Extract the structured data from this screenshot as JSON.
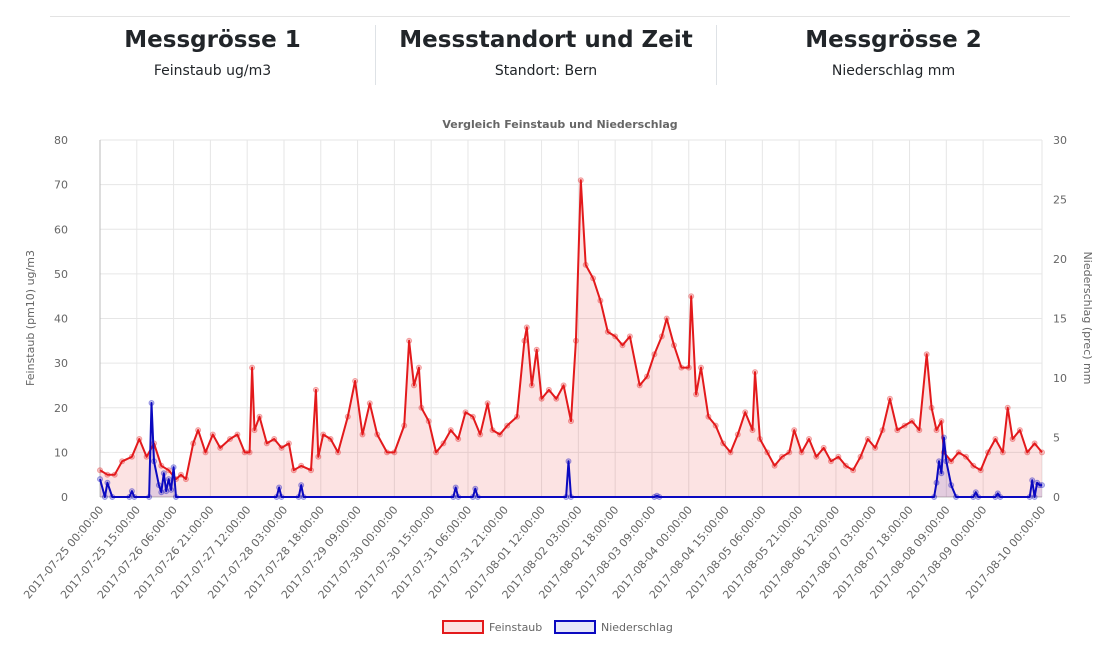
{
  "header": {
    "col1": {
      "title": "Messgrösse 1",
      "sub": "Feinstaub ug/m3"
    },
    "col2": {
      "title": "Messstandort und Zeit",
      "sub": "Standort: Bern"
    },
    "col3": {
      "title": "Messgrösse 2",
      "sub": "Niederschlag mm"
    }
  },
  "chart_data": {
    "type": "line",
    "title": "Vergleich Feinstaub und Niederschlag",
    "ylabel_left": "Feinstaub (pm10) ug/m3",
    "ylabel_right": "Niederschlag (prec) mm",
    "ylim_left": [
      0,
      80
    ],
    "ylim_right": [
      0,
      30
    ],
    "yticks_left": [
      "0",
      "10",
      "20",
      "30",
      "40",
      "50",
      "60",
      "70",
      "80"
    ],
    "yticks_right": [
      "0",
      "5",
      "10",
      "15",
      "20",
      "25",
      "30"
    ],
    "xlim": [
      "2017-07-25 00:00:00",
      "2017-08-10 00:00:00"
    ],
    "xticks": [
      "2017-07-25 00:00:00",
      "2017-07-25 15:00:00",
      "2017-07-26 06:00:00",
      "2017-07-26 21:00:00",
      "2017-07-27 12:00:00",
      "2017-07-28 03:00:00",
      "2017-07-28 18:00:00",
      "2017-07-29 09:00:00",
      "2017-07-30 00:00:00",
      "2017-07-30 15:00:00",
      "2017-07-31 06:00:00",
      "2017-07-31 21:00:00",
      "2017-08-01 12:00:00",
      "2017-08-02 03:00:00",
      "2017-08-02 18:00:00",
      "2017-08-03 09:00:00",
      "2017-08-04 00:00:00",
      "2017-08-04 15:00:00",
      "2017-08-05 06:00:00",
      "2017-08-05 21:00:00",
      "2017-08-06 12:00:00",
      "2017-08-07 03:00:00",
      "2017-08-07 18:00:00",
      "2017-08-08 09:00:00",
      "2017-08-09 00:00:00",
      "2017-08-10 00:00:00"
    ],
    "grid": true,
    "legend_position": "bottom",
    "series": [
      {
        "name": "Feinstaub",
        "axis": "left",
        "color": "#e31a1c",
        "fill": "rgba(227,26,28,0.12)",
        "points": [
          [
            "2017-07-25 00:00:00",
            6
          ],
          [
            "2017-07-25 03:00:00",
            5
          ],
          [
            "2017-07-25 06:00:00",
            5
          ],
          [
            "2017-07-25 09:00:00",
            8
          ],
          [
            "2017-07-25 13:00:00",
            9
          ],
          [
            "2017-07-25 16:00:00",
            13
          ],
          [
            "2017-07-25 19:00:00",
            9
          ],
          [
            "2017-07-25 22:00:00",
            12
          ],
          [
            "2017-07-26 01:00:00",
            7
          ],
          [
            "2017-07-26 04:00:00",
            6
          ],
          [
            "2017-07-26 07:00:00",
            4
          ],
          [
            "2017-07-26 09:00:00",
            5
          ],
          [
            "2017-07-26 11:00:00",
            4
          ],
          [
            "2017-07-26 14:00:00",
            12
          ],
          [
            "2017-07-26 16:00:00",
            15
          ],
          [
            "2017-07-26 19:00:00",
            10
          ],
          [
            "2017-07-26 22:00:00",
            14
          ],
          [
            "2017-07-27 01:00:00",
            11
          ],
          [
            "2017-07-27 05:00:00",
            13
          ],
          [
            "2017-07-27 08:00:00",
            14
          ],
          [
            "2017-07-27 11:00:00",
            10
          ],
          [
            "2017-07-27 13:00:00",
            10
          ],
          [
            "2017-07-27 14:00:00",
            29
          ],
          [
            "2017-07-27 15:00:00",
            15
          ],
          [
            "2017-07-27 17:00:00",
            18
          ],
          [
            "2017-07-27 20:00:00",
            12
          ],
          [
            "2017-07-27 23:00:00",
            13
          ],
          [
            "2017-07-28 02:00:00",
            11
          ],
          [
            "2017-07-28 05:00:00",
            12
          ],
          [
            "2017-07-28 07:00:00",
            6
          ],
          [
            "2017-07-28 10:00:00",
            7
          ],
          [
            "2017-07-28 14:00:00",
            6
          ],
          [
            "2017-07-28 16:00:00",
            24
          ],
          [
            "2017-07-28 17:00:00",
            9
          ],
          [
            "2017-07-28 19:00:00",
            14
          ],
          [
            "2017-07-28 22:00:00",
            13
          ],
          [
            "2017-07-29 01:00:00",
            10
          ],
          [
            "2017-07-29 05:00:00",
            18
          ],
          [
            "2017-07-29 08:00:00",
            26
          ],
          [
            "2017-07-29 11:00:00",
            14
          ],
          [
            "2017-07-29 14:00:00",
            21
          ],
          [
            "2017-07-29 17:00:00",
            14
          ],
          [
            "2017-07-29 21:00:00",
            10
          ],
          [
            "2017-07-30 00:00:00",
            10
          ],
          [
            "2017-07-30 04:00:00",
            16
          ],
          [
            "2017-07-30 06:00:00",
            35
          ],
          [
            "2017-07-30 08:00:00",
            25
          ],
          [
            "2017-07-30 10:00:00",
            29
          ],
          [
            "2017-07-30 11:00:00",
            20
          ],
          [
            "2017-07-30 14:00:00",
            17
          ],
          [
            "2017-07-30 17:00:00",
            10
          ],
          [
            "2017-07-30 20:00:00",
            12
          ],
          [
            "2017-07-30 23:00:00",
            15
          ],
          [
            "2017-07-31 02:00:00",
            13
          ],
          [
            "2017-07-31 05:00:00",
            19
          ],
          [
            "2017-07-31 08:00:00",
            18
          ],
          [
            "2017-07-31 11:00:00",
            14
          ],
          [
            "2017-07-31 14:00:00",
            21
          ],
          [
            "2017-07-31 16:00:00",
            15
          ],
          [
            "2017-07-31 19:00:00",
            14
          ],
          [
            "2017-07-31 22:00:00",
            16
          ],
          [
            "2017-08-01 02:00:00",
            18
          ],
          [
            "2017-08-01 05:00:00",
            35
          ],
          [
            "2017-08-01 06:00:00",
            38
          ],
          [
            "2017-08-01 08:00:00",
            25
          ],
          [
            "2017-08-01 10:00:00",
            33
          ],
          [
            "2017-08-01 12:00:00",
            22
          ],
          [
            "2017-08-01 15:00:00",
            24
          ],
          [
            "2017-08-01 18:00:00",
            22
          ],
          [
            "2017-08-01 21:00:00",
            25
          ],
          [
            "2017-08-02 00:00:00",
            17
          ],
          [
            "2017-08-02 02:00:00",
            35
          ],
          [
            "2017-08-02 04:00:00",
            71
          ],
          [
            "2017-08-02 06:00:00",
            52
          ],
          [
            "2017-08-02 09:00:00",
            49
          ],
          [
            "2017-08-02 12:00:00",
            44
          ],
          [
            "2017-08-02 15:00:00",
            37
          ],
          [
            "2017-08-02 18:00:00",
            36
          ],
          [
            "2017-08-02 21:00:00",
            34
          ],
          [
            "2017-08-03 00:00:00",
            36
          ],
          [
            "2017-08-03 04:00:00",
            25
          ],
          [
            "2017-08-03 07:00:00",
            27
          ],
          [
            "2017-08-03 10:00:00",
            32
          ],
          [
            "2017-08-03 13:00:00",
            36
          ],
          [
            "2017-08-03 15:00:00",
            40
          ],
          [
            "2017-08-03 18:00:00",
            34
          ],
          [
            "2017-08-03 21:00:00",
            29
          ],
          [
            "2017-08-04 00:00:00",
            29
          ],
          [
            "2017-08-04 01:00:00",
            45
          ],
          [
            "2017-08-04 03:00:00",
            23
          ],
          [
            "2017-08-04 05:00:00",
            29
          ],
          [
            "2017-08-04 08:00:00",
            18
          ],
          [
            "2017-08-04 11:00:00",
            16
          ],
          [
            "2017-08-04 14:00:00",
            12
          ],
          [
            "2017-08-04 17:00:00",
            10
          ],
          [
            "2017-08-04 20:00:00",
            14
          ],
          [
            "2017-08-04 23:00:00",
            19
          ],
          [
            "2017-08-05 02:00:00",
            15
          ],
          [
            "2017-08-05 03:00:00",
            28
          ],
          [
            "2017-08-05 05:00:00",
            13
          ],
          [
            "2017-08-05 08:00:00",
            10
          ],
          [
            "2017-08-05 11:00:00",
            7
          ],
          [
            "2017-08-05 14:00:00",
            9
          ],
          [
            "2017-08-05 17:00:00",
            10
          ],
          [
            "2017-08-05 19:00:00",
            15
          ],
          [
            "2017-08-05 22:00:00",
            10
          ],
          [
            "2017-08-06 01:00:00",
            13
          ],
          [
            "2017-08-06 04:00:00",
            9
          ],
          [
            "2017-08-06 07:00:00",
            11
          ],
          [
            "2017-08-06 10:00:00",
            8
          ],
          [
            "2017-08-06 13:00:00",
            9
          ],
          [
            "2017-08-06 16:00:00",
            7
          ],
          [
            "2017-08-06 19:00:00",
            6
          ],
          [
            "2017-08-06 22:00:00",
            9
          ],
          [
            "2017-08-07 01:00:00",
            13
          ],
          [
            "2017-08-07 04:00:00",
            11
          ],
          [
            "2017-08-07 07:00:00",
            15
          ],
          [
            "2017-08-07 10:00:00",
            22
          ],
          [
            "2017-08-07 13:00:00",
            15
          ],
          [
            "2017-08-07 16:00:00",
            16
          ],
          [
            "2017-08-07 19:00:00",
            17
          ],
          [
            "2017-08-07 22:00:00",
            15
          ],
          [
            "2017-08-08 01:00:00",
            32
          ],
          [
            "2017-08-08 03:00:00",
            20
          ],
          [
            "2017-08-08 05:00:00",
            15
          ],
          [
            "2017-08-08 07:00:00",
            17
          ],
          [
            "2017-08-08 08:00:00",
            10
          ],
          [
            "2017-08-08 11:00:00",
            8
          ],
          [
            "2017-08-08 14:00:00",
            10
          ],
          [
            "2017-08-08 17:00:00",
            9
          ],
          [
            "2017-08-08 20:00:00",
            7
          ],
          [
            "2017-08-08 23:00:00",
            6
          ],
          [
            "2017-08-09 02:00:00",
            10
          ],
          [
            "2017-08-09 05:00:00",
            13
          ],
          [
            "2017-08-09 08:00:00",
            10
          ],
          [
            "2017-08-09 10:00:00",
            20
          ],
          [
            "2017-08-09 12:00:00",
            13
          ],
          [
            "2017-08-09 15:00:00",
            15
          ],
          [
            "2017-08-09 18:00:00",
            10
          ],
          [
            "2017-08-09 21:00:00",
            12
          ],
          [
            "2017-08-10 00:00:00",
            10
          ]
        ]
      },
      {
        "name": "Niederschlag",
        "axis": "right",
        "color": "#0b09c0",
        "fill": "rgba(11,9,192,0.10)",
        "points": [
          [
            "2017-07-25 00:00:00",
            1.5
          ],
          [
            "2017-07-25 02:00:00",
            0
          ],
          [
            "2017-07-25 03:00:00",
            1.2
          ],
          [
            "2017-07-25 05:00:00",
            0
          ],
          [
            "2017-07-25 12:00:00",
            0
          ],
          [
            "2017-07-25 13:00:00",
            0.5
          ],
          [
            "2017-07-25 14:00:00",
            0
          ],
          [
            "2017-07-25 20:00:00",
            0
          ],
          [
            "2017-07-25 21:00:00",
            7.9
          ],
          [
            "2017-07-25 22:00:00",
            3
          ],
          [
            "2017-07-26 00:00:00",
            1
          ],
          [
            "2017-07-26 01:00:00",
            0.4
          ],
          [
            "2017-07-26 02:00:00",
            2
          ],
          [
            "2017-07-26 03:00:00",
            0.5
          ],
          [
            "2017-07-26 04:00:00",
            1.5
          ],
          [
            "2017-07-26 05:00:00",
            0.6
          ],
          [
            "2017-07-26 06:00:00",
            2.5
          ],
          [
            "2017-07-26 07:00:00",
            0
          ],
          [
            "2017-07-28 00:00:00",
            0
          ],
          [
            "2017-07-28 01:00:00",
            0.8
          ],
          [
            "2017-07-28 02:00:00",
            0
          ],
          [
            "2017-07-28 09:00:00",
            0
          ],
          [
            "2017-07-28 10:00:00",
            1
          ],
          [
            "2017-07-28 11:00:00",
            0
          ],
          [
            "2017-07-31 00:00:00",
            0
          ],
          [
            "2017-07-31 01:00:00",
            0.8
          ],
          [
            "2017-07-31 02:00:00",
            0
          ],
          [
            "2017-07-31 08:00:00",
            0
          ],
          [
            "2017-07-31 09:00:00",
            0.7
          ],
          [
            "2017-07-31 10:00:00",
            0
          ],
          [
            "2017-08-01 22:00:00",
            0
          ],
          [
            "2017-08-01 23:00:00",
            3
          ],
          [
            "2017-08-02 00:00:00",
            0
          ],
          [
            "2017-08-03 10:00:00",
            0
          ],
          [
            "2017-08-03 11:00:00",
            0.1
          ],
          [
            "2017-08-03 12:00:00",
            0
          ],
          [
            "2017-08-08 04:00:00",
            0
          ],
          [
            "2017-08-08 05:00:00",
            1.2
          ],
          [
            "2017-08-08 06:00:00",
            3
          ],
          [
            "2017-08-08 07:00:00",
            2
          ],
          [
            "2017-08-08 08:00:00",
            5
          ],
          [
            "2017-08-08 09:00:00",
            3
          ],
          [
            "2017-08-08 11:00:00",
            1
          ],
          [
            "2017-08-08 13:00:00",
            0
          ],
          [
            "2017-08-08 20:00:00",
            0
          ],
          [
            "2017-08-08 21:00:00",
            0.4
          ],
          [
            "2017-08-08 22:00:00",
            0
          ],
          [
            "2017-08-09 05:00:00",
            0
          ],
          [
            "2017-08-09 06:00:00",
            0.3
          ],
          [
            "2017-08-09 07:00:00",
            0
          ],
          [
            "2017-08-09 19:00:00",
            0
          ],
          [
            "2017-08-09 20:00:00",
            1.4
          ],
          [
            "2017-08-09 21:00:00",
            0
          ],
          [
            "2017-08-09 22:00:00",
            1.2
          ],
          [
            "2017-08-09 23:00:00",
            1
          ],
          [
            "2017-08-10 00:00:00",
            1
          ]
        ]
      }
    ]
  }
}
